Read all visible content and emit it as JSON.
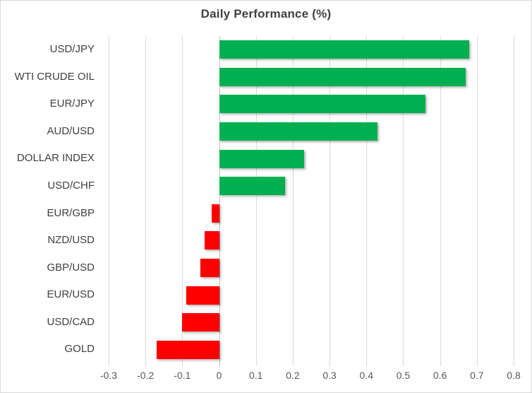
{
  "chart_data": {
    "type": "bar",
    "orientation": "horizontal",
    "title": "Daily Performance (%)",
    "categories": [
      "USD/JPY",
      "WTI CRUDE OIL",
      "EUR/JPY",
      "AUD/USD",
      "DOLLAR INDEX",
      "USD/CHF",
      "EUR/GBP",
      "NZD/USD",
      "GBP/USD",
      "EUR/USD",
      "USD/CAD",
      "GOLD"
    ],
    "values": [
      0.68,
      0.67,
      0.56,
      0.43,
      0.23,
      0.18,
      -0.02,
      -0.04,
      -0.05,
      -0.09,
      -0.1,
      -0.17
    ],
    "xlabel": "",
    "ylabel": "",
    "xlim": [
      -0.3,
      0.8
    ],
    "xticks": [
      {
        "value": -0.3,
        "label": "-0.3"
      },
      {
        "value": -0.2,
        "label": "-0.2"
      },
      {
        "value": -0.1,
        "label": "-0.1"
      },
      {
        "value": 0,
        "label": "0"
      },
      {
        "value": 0.1,
        "label": "0.1"
      },
      {
        "value": 0.2,
        "label": "0.2"
      },
      {
        "value": 0.3,
        "label": "0.3"
      },
      {
        "value": 0.4,
        "label": "0.4"
      },
      {
        "value": 0.5,
        "label": "0.5"
      },
      {
        "value": 0.6,
        "label": "0.6"
      },
      {
        "value": 0.7,
        "label": "0.7"
      },
      {
        "value": 0.8,
        "label": "0.8"
      }
    ],
    "grid": "vertical-gridlines-on",
    "legend": "none",
    "colors": {
      "positive_bar": "#00B050",
      "negative_bar": "#FF0000",
      "gridline": "#D9D9D9",
      "axis_line": "#BFBFBF",
      "tick_label": "#595959",
      "category_label": "#404040",
      "title": "#404040",
      "background": "#FFFFFF",
      "border": "#D9D9D9"
    }
  }
}
